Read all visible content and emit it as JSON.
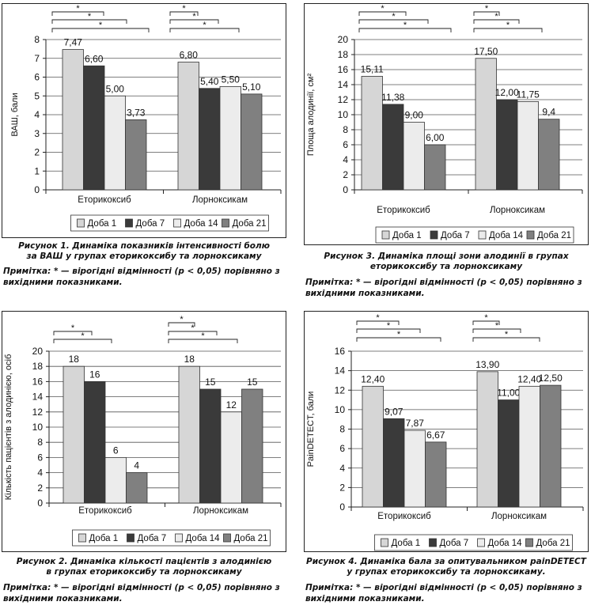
{
  "series_styles": [
    {
      "name": "Доба 1",
      "fill": "#d6d6d6"
    },
    {
      "name": "Доба 7",
      "fill": "#3a3a3a"
    },
    {
      "name": "Доба 14",
      "fill": "#ececec"
    },
    {
      "name": "Доба 21",
      "fill": "#808080"
    }
  ],
  "chart_data": [
    {
      "type": "bar",
      "categories": [
        "Еторикоксиб",
        "Лорноксикам"
      ],
      "series": [
        {
          "name": "Доба 1",
          "values": [
            7.47,
            6.8
          ]
        },
        {
          "name": "Доба 7",
          "values": [
            6.6,
            5.4
          ]
        },
        {
          "name": "Доба 14",
          "values": [
            5.0,
            5.5
          ]
        },
        {
          "name": "Доба 21",
          "values": [
            3.73,
            5.1
          ]
        }
      ],
      "value_labels": [
        [
          "7,47",
          "6,60",
          "5,00",
          "3,73"
        ],
        [
          "6,80",
          "5,40",
          "5,50",
          "5,10"
        ]
      ],
      "ylabel": "ВАШ, бали",
      "ylim": [
        0,
        8
      ],
      "yticks": [
        "0",
        "1",
        "2",
        "3",
        "4",
        "5",
        "6",
        "7",
        "8"
      ],
      "grid": true,
      "legend": "bottom",
      "significance": [
        [
          "*",
          "*",
          "*"
        ],
        [
          "*",
          "*",
          "*"
        ]
      ],
      "caption": [
        "Рисунок 1. Динаміка показників інтенсивності болю",
        "за ВАШ у групах еторикоксибу та лорноксикаму"
      ],
      "note": [
        "Примітка: * — вірогідні відмінності (p < 0,05) порівняно з",
        "вихідними показниками."
      ]
    },
    {
      "type": "bar",
      "categories": [
        "Еторикоксиб",
        "Лорноксикам"
      ],
      "series": [
        {
          "name": "Доба 1",
          "values": [
            15.11,
            17.5
          ]
        },
        {
          "name": "Доба 7",
          "values": [
            11.38,
            12.0
          ]
        },
        {
          "name": "Доба 14",
          "values": [
            9.0,
            11.75
          ]
        },
        {
          "name": "Доба 21",
          "values": [
            6.0,
            9.4
          ]
        }
      ],
      "value_labels": [
        [
          "15,11",
          "11,38",
          "9,00",
          "6,00"
        ],
        [
          "17,50",
          "12,00",
          "11,75",
          "9,4"
        ]
      ],
      "ylabel": "Площа алодинії, см²",
      "ylim": [
        0,
        20
      ],
      "yticks": [
        "0",
        "2",
        "4",
        "6",
        "8",
        "10",
        "12",
        "14",
        "16",
        "18",
        "20"
      ],
      "grid": true,
      "legend": "bottom",
      "significance": [
        [
          "*",
          "*",
          "*"
        ],
        [
          "*",
          "*",
          "*"
        ]
      ],
      "caption": [
        "Рисунок 3. Динаміка площі зони алодинії в групах",
        "еторикоксибу та лорноксикаму"
      ],
      "note": [
        "Примітка: * — вірогідні відмінності (p < 0,05) порівняно з",
        "вихідними показниками."
      ]
    },
    {
      "type": "bar",
      "categories": [
        "Еторикоксиб",
        "Лорноксикам"
      ],
      "series": [
        {
          "name": "Доба 1",
          "values": [
            18,
            18
          ]
        },
        {
          "name": "Доба 7",
          "values": [
            16,
            15
          ]
        },
        {
          "name": "Доба 14",
          "values": [
            6,
            12
          ]
        },
        {
          "name": "Доба 21",
          "values": [
            4,
            15
          ]
        }
      ],
      "value_labels": [
        [
          "18",
          "16",
          "6",
          "4"
        ],
        [
          "18",
          "15",
          "12",
          "15"
        ]
      ],
      "ylabel": "Кількість пацієнтів з алодинією, осіб",
      "ylim": [
        0,
        20
      ],
      "yticks": [
        "0",
        "2",
        "4",
        "6",
        "8",
        "10",
        "12",
        "14",
        "16",
        "18",
        "20"
      ],
      "grid": true,
      "legend": "bottom",
      "significance": [
        [
          "*",
          "*"
        ],
        [
          "*",
          "*",
          "*"
        ]
      ],
      "caption": [
        "Рисунок 2. Динаміка кількості пацієнтів з алодинією",
        "в групах еторикоксибу та лорноксикаму"
      ],
      "note": [
        "Примітка: * — вірогідні відмінності (p < 0,05) порівняно з",
        "вихідними показниками."
      ]
    },
    {
      "type": "bar",
      "categories": [
        "Еторикоксиб",
        "Лорноксикам"
      ],
      "series": [
        {
          "name": "Доба 1",
          "values": [
            12.4,
            13.9
          ]
        },
        {
          "name": "Доба 7",
          "values": [
            9.07,
            11.0
          ]
        },
        {
          "name": "Доба 14",
          "values": [
            7.87,
            12.4
          ]
        },
        {
          "name": "Доба 21",
          "values": [
            6.67,
            12.5
          ]
        }
      ],
      "value_labels": [
        [
          "12,40",
          "9,07",
          "7,87",
          "6,67"
        ],
        [
          "13,90",
          "11,00",
          "12,40",
          "12,50"
        ]
      ],
      "ylabel": "PainDETECT, бали",
      "ylim": [
        0,
        16
      ],
      "yticks": [
        "0",
        "2",
        "4",
        "6",
        "8",
        "10",
        "12",
        "14",
        "16"
      ],
      "grid": true,
      "legend": "bottom",
      "significance": [
        [
          "*",
          "*",
          "*"
        ],
        [
          "*",
          "*",
          "*"
        ]
      ],
      "caption": [
        "Рисунок 4. Динаміка бала за опитувальником painDETECT",
        "у групах еторикоксибу та лорноксикаму."
      ],
      "note": [
        "Примітка: * — вірогідні відмінності (p < 0,05) порівняно з",
        "вихідними показниками."
      ]
    }
  ]
}
